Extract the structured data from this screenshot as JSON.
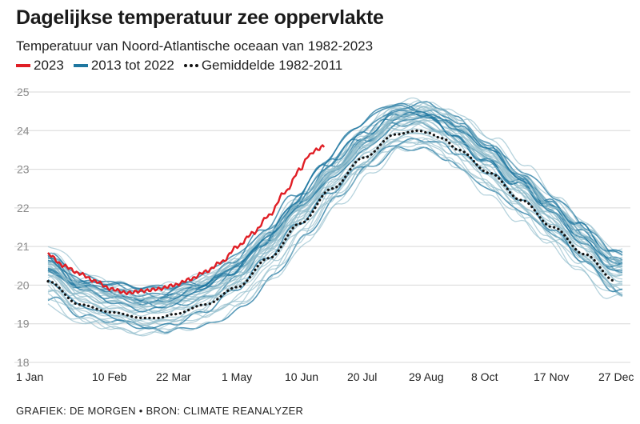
{
  "chart_data": {
    "type": "line",
    "title": "Dagelijkse temperatuur zee oppervlakte",
    "subtitle": "Temperatuur van Noord-Atlantische oceaan van 1982-2023",
    "xlabel": "",
    "ylabel": "",
    "ylim": [
      18,
      25
    ],
    "yticks": [
      "25",
      "24",
      "23",
      "22",
      "21",
      "20",
      "19",
      "18"
    ],
    "ytick_values": [
      25,
      24,
      23,
      22,
      21,
      20,
      19,
      18
    ],
    "xlim": [
      1,
      365
    ],
    "xticks": [
      "1 Jan",
      "10 Feb",
      "22 Mar",
      "1 May",
      "10 Jun",
      "20 Jul",
      "29 Aug",
      "8 Oct",
      "17 Nov",
      "27 Dec"
    ],
    "xtick_days": [
      1,
      41,
      81,
      121,
      161,
      201,
      241,
      281,
      321,
      361
    ],
    "grid": true,
    "legend": [
      {
        "label": "2023",
        "color": "#e01e25",
        "style": "solid"
      },
      {
        "label": "2013 tot 2022",
        "color": "#1f77a0",
        "style": "solid"
      },
      {
        "label": "Gemiddelde 1982-2011",
        "color": "#111111",
        "style": "dotted"
      }
    ],
    "series": [
      {
        "name": "Gemiddelde 1982-2011",
        "color": "#111111",
        "style": "dotted",
        "x": [
          1,
          21,
          41,
          61,
          71,
          81,
          101,
          121,
          141,
          161,
          181,
          201,
          221,
          236,
          241,
          251,
          261,
          281,
          301,
          321,
          341,
          361
        ],
        "values": [
          20.1,
          19.5,
          19.3,
          19.15,
          19.15,
          19.25,
          19.5,
          19.95,
          20.7,
          21.6,
          22.5,
          23.3,
          23.9,
          24.0,
          23.95,
          23.8,
          23.5,
          22.9,
          22.2,
          21.5,
          20.8,
          20.1
        ]
      },
      {
        "name": "2023",
        "color": "#e01e25",
        "style": "solid",
        "x": [
          1,
          11,
          21,
          31,
          41,
          51,
          61,
          71,
          81,
          91,
          101,
          111,
          121,
          131,
          141,
          151,
          161,
          166,
          171,
          176
        ],
        "values": [
          20.8,
          20.5,
          20.3,
          20.1,
          19.9,
          19.8,
          19.85,
          19.9,
          20.0,
          20.15,
          20.35,
          20.6,
          21.0,
          21.35,
          21.8,
          22.4,
          23.0,
          23.35,
          23.5,
          23.6
        ]
      }
    ],
    "band": {
      "name": "2013 tot 2022",
      "description": "approx. 40 light-blue yearly lines spread around the mean; several darker 2013-2022 lines",
      "color": "#1f77a0",
      "light_color": "#8fbccb",
      "spread": 0.55
    }
  },
  "footer": {
    "text": "GRAFIEK: DE MORGEN • BRON: CLIMATE REANALYZER"
  }
}
